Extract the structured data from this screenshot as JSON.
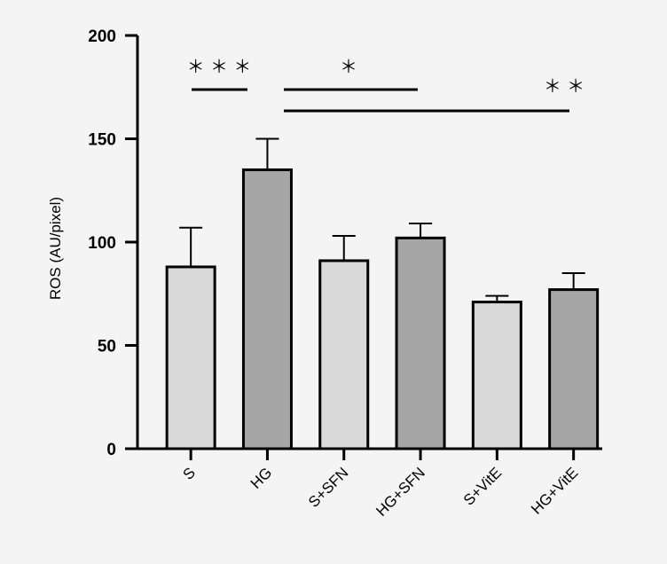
{
  "chart_data": {
    "type": "bar",
    "title": "",
    "xlabel": "",
    "ylabel": "ROS (AU/pixel)",
    "ylim": [
      0,
      200
    ],
    "yticks": [
      0,
      50,
      100,
      150,
      200
    ],
    "grid": false,
    "categories": [
      "S",
      "HG",
      "S+SFN",
      "HG+SFN",
      "S+VitE",
      "HG+VitE"
    ],
    "values": [
      88,
      135,
      91,
      102,
      71,
      77
    ],
    "errors": [
      19,
      15,
      12,
      7,
      3,
      8
    ],
    "colors": [
      "#d9d9d9",
      "#a6a6a6",
      "#d9d9d9",
      "#a6a6a6",
      "#d9d9d9",
      "#a6a6a6"
    ],
    "significance": [
      {
        "from": 0,
        "to": 1,
        "label": "＊ ＊ ＊"
      },
      {
        "from": 1,
        "to": 3,
        "label": "＊"
      },
      {
        "from": 1,
        "to": 5,
        "label": "＊ ＊"
      }
    ]
  }
}
